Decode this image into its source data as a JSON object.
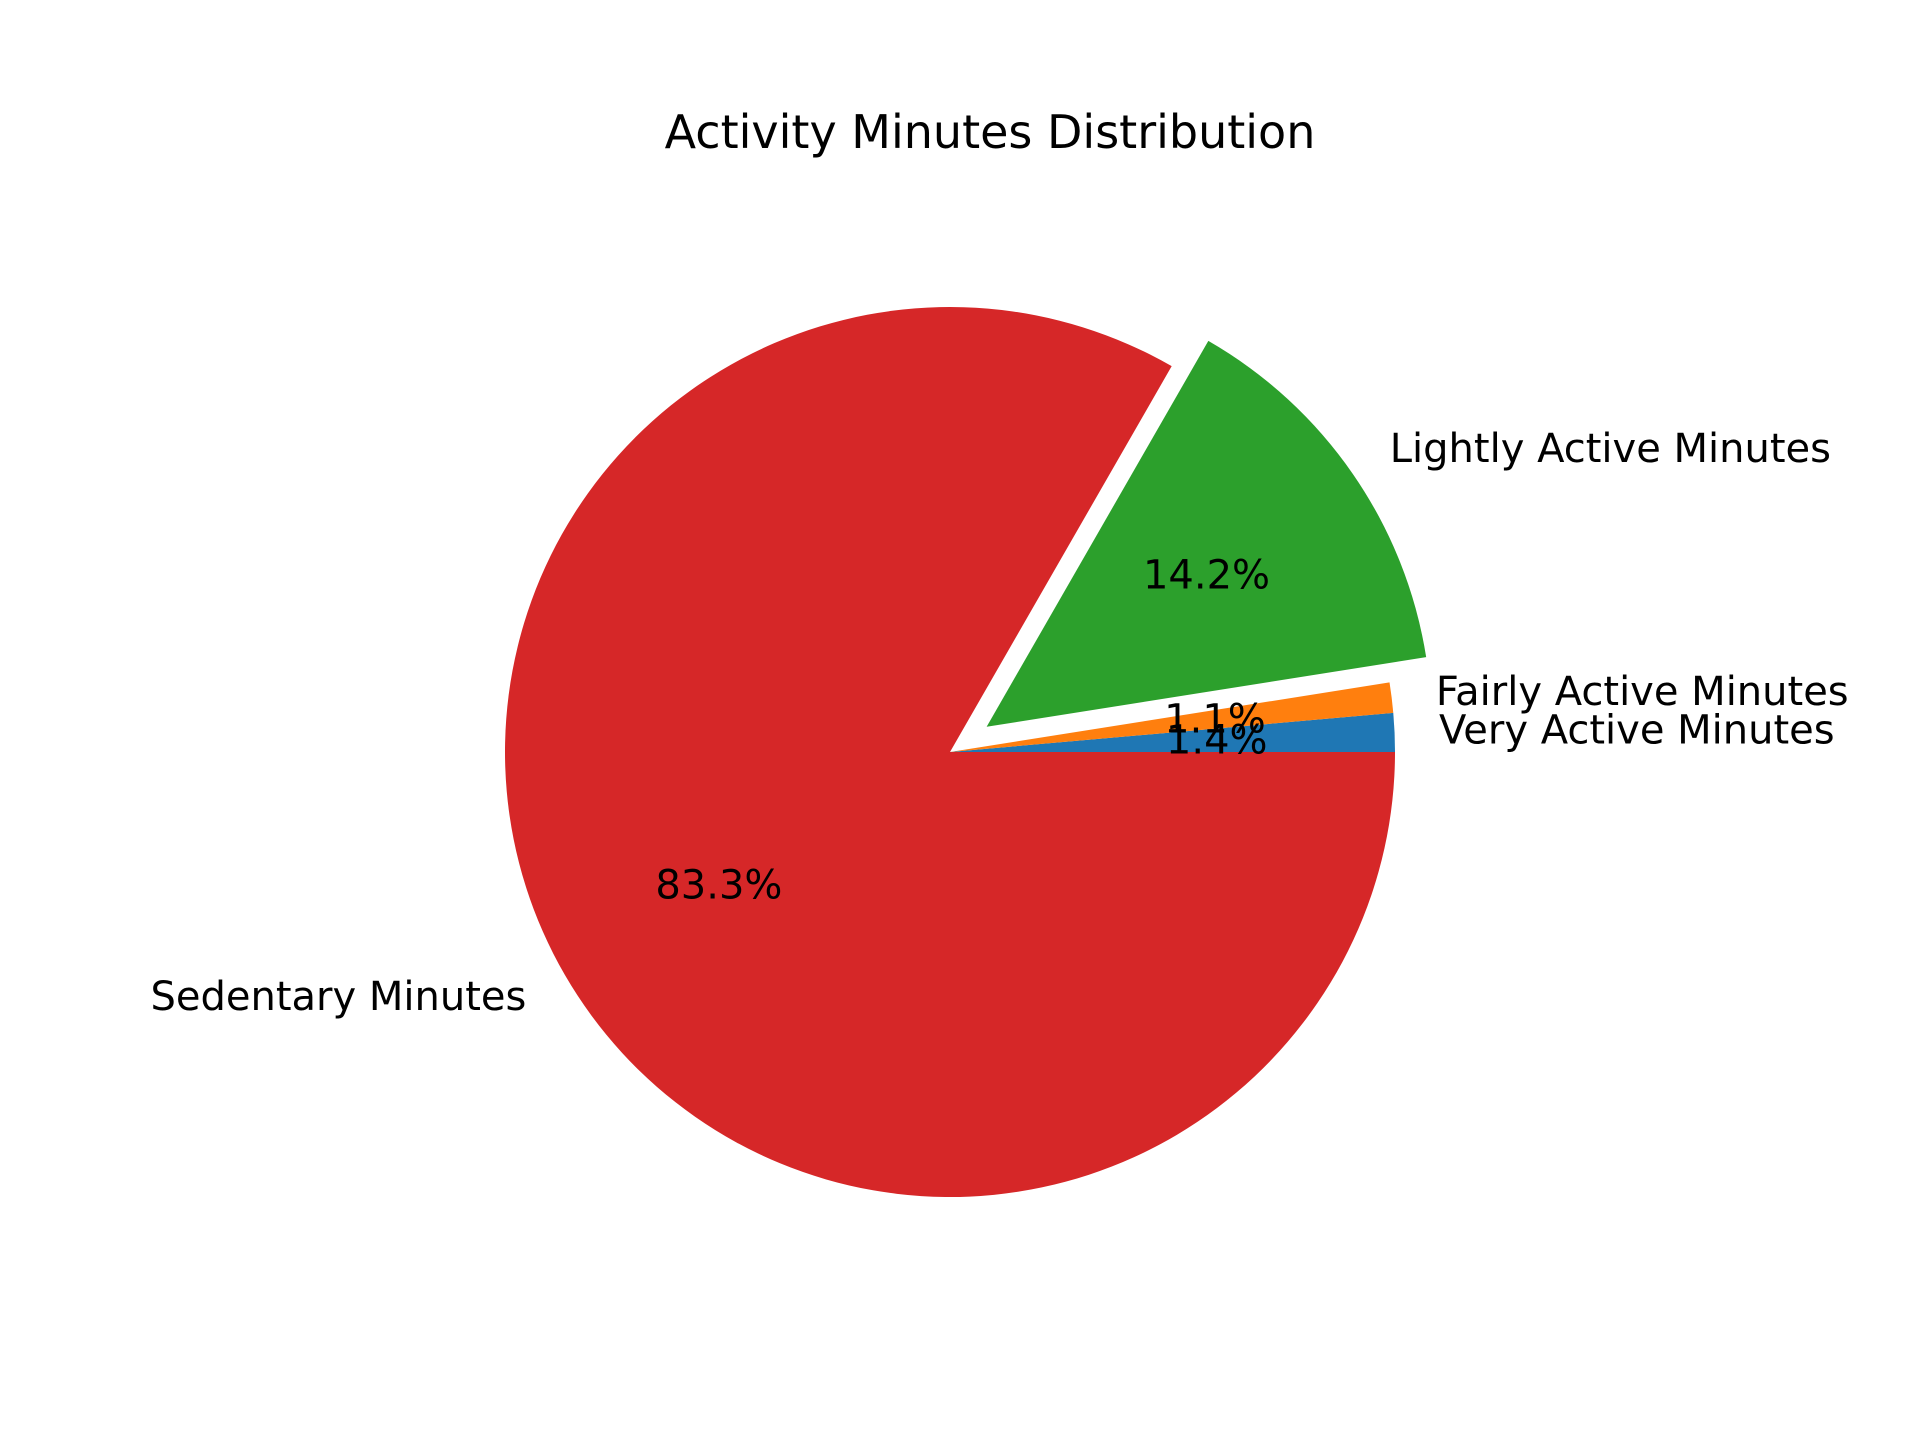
{
  "chart_data": {
    "type": "pie",
    "title": "Activity Minutes Distribution",
    "categories": [
      "Very Active Minutes",
      "Fairly Active Minutes",
      "Lightly Active Minutes",
      "Sedentary Minutes"
    ],
    "values": [
      1.4,
      1.1,
      14.2,
      83.3
    ],
    "value_labels": [
      "1.4%",
      "1.1%",
      "14.2%",
      "83.3%"
    ],
    "exploded": [
      false,
      false,
      true,
      false
    ],
    "colors": [
      "#1f77b4",
      "#ff7f0e",
      "#2ca02c",
      "#d62728"
    ],
    "start_angle_deg": 0,
    "direction": "counterclockwise",
    "legend": "none"
  }
}
